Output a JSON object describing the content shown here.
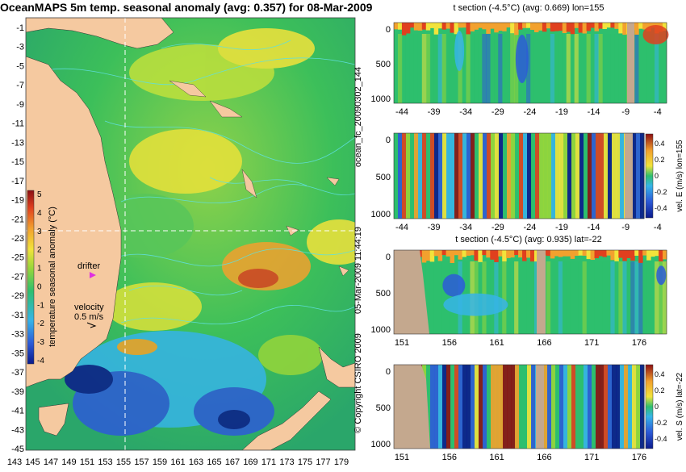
{
  "colors": {
    "land": "#f5c9a0",
    "section_land": "#c4a88e",
    "contour": "#5fe0e0",
    "crosshair": "#ffffff",
    "drifter": "#e030e0",
    "scale": [
      "#0a1a8c",
      "#2d5bd8",
      "#36b4e8",
      "#2ebf6e",
      "#97d63a",
      "#f2e33b",
      "#f2a12e",
      "#e0401e",
      "#8c0f12"
    ]
  },
  "map": {
    "title": "OceanMAPS 5m temp. seasonal anomaly (avg: 0.357) for 08-Mar-2009",
    "lat_ticks": [
      "-1",
      "-3",
      "-5",
      "-7",
      "-9",
      "-11",
      "-13",
      "-15",
      "-17",
      "-19",
      "-21",
      "-23",
      "-25",
      "-27",
      "-29",
      "-31",
      "-33",
      "-35",
      "-37",
      "-39",
      "-41",
      "-43",
      "-45"
    ],
    "lon_ticks": [
      "143",
      "145",
      "147",
      "149",
      "151",
      "153",
      "155",
      "157",
      "159",
      "161",
      "163",
      "165",
      "167",
      "169",
      "171",
      "173",
      "175",
      "177",
      "179"
    ],
    "colorbar_label": "temperature seasonal anomaly (°C)",
    "colorbar_ticks": [
      "5",
      "4",
      "3",
      "2",
      "1",
      "0",
      "-1",
      "-2",
      "-3",
      "-4"
    ],
    "drifter_label": "drifter",
    "velocity_label": "velocity",
    "velocity_scale": "0.5 m/s"
  },
  "chart_data": [
    {
      "type": "heatmap",
      "title": "OceanMAPS 5m temp. seasonal anomaly (avg: 0.357) for 08-Mar-2009",
      "x_ticks": [
        143,
        145,
        147,
        149,
        151,
        153,
        155,
        157,
        159,
        161,
        163,
        165,
        167,
        169,
        171,
        173,
        175,
        177,
        179
      ],
      "y_ticks": [
        -1,
        -3,
        -5,
        -7,
        -9,
        -11,
        -13,
        -15,
        -17,
        -19,
        -21,
        -23,
        -25,
        -27,
        -29,
        -31,
        -33,
        -35,
        -37,
        -39,
        -41,
        -43,
        -45
      ],
      "colorbar": {
        "label": "temperature seasonal anomaly (°C)",
        "range": [
          -4,
          5
        ]
      },
      "crosshair": {
        "lon": 155,
        "lat": -22
      }
    },
    {
      "type": "heatmap",
      "title": "t section (-4.5°C) (avg: 0.669) lon=155",
      "x_ticks": [
        -44,
        -39,
        -34,
        -29,
        -24,
        -19,
        -14,
        -9,
        -4
      ],
      "y_ticks": [
        0,
        500,
        1000
      ]
    },
    {
      "type": "heatmap",
      "x_ticks": [
        -44,
        -39,
        -34,
        -29,
        -24,
        -19,
        -14,
        -9,
        -4
      ],
      "y_ticks": [
        0,
        500,
        1000
      ],
      "colorbar": {
        "label": "vel. E (m/s) lon=155",
        "ticks": [
          0.4,
          0.2,
          0,
          -0.2,
          -0.4
        ]
      }
    },
    {
      "type": "heatmap",
      "title": "t section (-4.5°C) (avg: 0.935) lat=-22",
      "x_ticks": [
        151,
        156,
        161,
        166,
        171,
        176
      ],
      "y_ticks": [
        0,
        500,
        1000
      ]
    },
    {
      "type": "heatmap",
      "x_ticks": [
        151,
        156,
        161,
        166,
        171,
        176
      ],
      "y_ticks": [
        0,
        500,
        1000
      ],
      "colorbar": {
        "label": "vel. S (m/s) lat=-22",
        "ticks": [
          0.4,
          0.2,
          0,
          -0.2,
          -0.4
        ]
      }
    }
  ],
  "sections": {
    "s1_title": "t section (-4.5°C) (avg: 0.669) lon=155",
    "s3_title": "t section (-4.5°C) (avg: 0.935) lat=-22",
    "lat_x_ticks": [
      "-44",
      "-39",
      "-34",
      "-29",
      "-24",
      "-19",
      "-14",
      "-9",
      "-4"
    ],
    "lon_x_ticks": [
      "151",
      "156",
      "161",
      "166",
      "171",
      "176"
    ],
    "depth_ticks": [
      "0",
      "500",
      "1000"
    ],
    "velE_label": "vel. E (m/s) lon=155",
    "velS_label": "vel. S (m/s) lat=-22",
    "vel_ticks": [
      "0.4",
      "0.2",
      "0",
      "-0.2",
      "-0.4"
    ]
  },
  "side_labels": {
    "forecast": "ocean_fc_20090302_144",
    "timestamp": "05-Mar-2009 11:44:19",
    "copyright": "© Copyright CSIRO 2009"
  }
}
